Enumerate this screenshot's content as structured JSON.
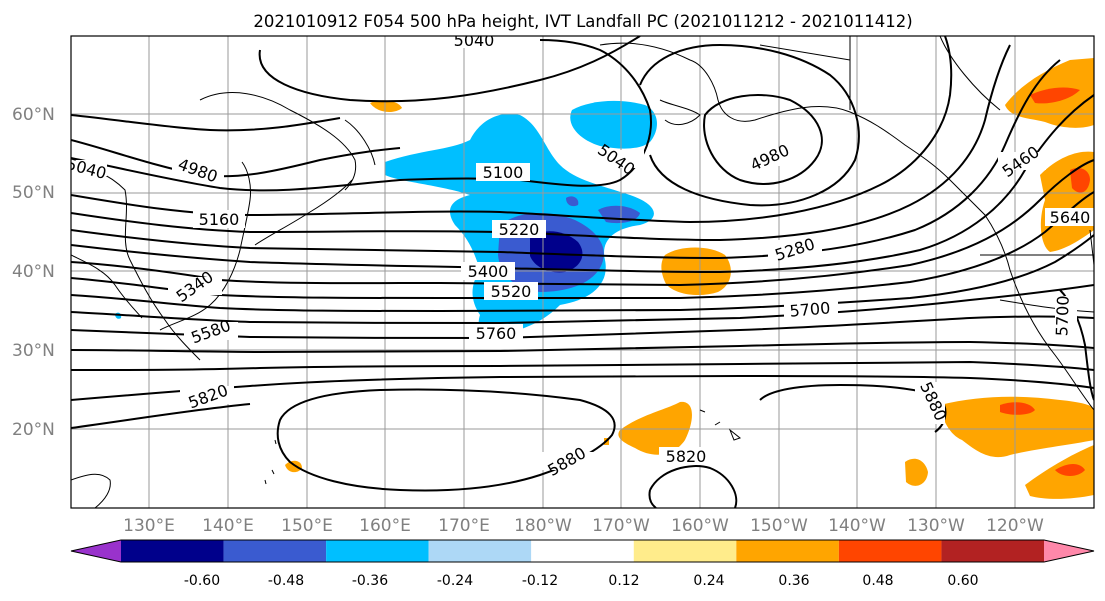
{
  "title": "2021010912 F054 500 hPa height, IVT Landfall PC (2021011212 - 2021011412)",
  "lat_labels": [
    "60°N",
    "50°N",
    "40°N",
    "30°N",
    "20°N"
  ],
  "lon_labels": [
    "130°E",
    "140°E",
    "150°E",
    "160°E",
    "170°E",
    "180°W",
    "170°W",
    "160°W",
    "150°W",
    "140°W",
    "130°W",
    "120°W"
  ],
  "colorbar": {
    "ticks": [
      "-0.60",
      "-0.48",
      "-0.36",
      "-0.24",
      "-0.12",
      "0.12",
      "0.24",
      "0.36",
      "0.48",
      "0.60"
    ],
    "colors": [
      "#9932cc",
      "#00008b",
      "#3a5bd0",
      "#00bfff",
      "#add8f6",
      "#ffffff",
      "#ffec8b",
      "#ffa500",
      "#ff4500",
      "#b22222",
      "#ff88aa"
    ]
  },
  "contour_labels": [
    {
      "id": "c5040-top",
      "text": "5040"
    },
    {
      "id": "c5040-left",
      "text": "5040"
    },
    {
      "id": "c4980-left",
      "text": "4980"
    },
    {
      "id": "c5100",
      "text": "5100"
    },
    {
      "id": "c5040-mid",
      "text": "5040"
    },
    {
      "id": "c4980-right",
      "text": "4980"
    },
    {
      "id": "c5160",
      "text": "5160"
    },
    {
      "id": "c5220",
      "text": "5220"
    },
    {
      "id": "c5280",
      "text": "5280"
    },
    {
      "id": "c5340",
      "text": "5340"
    },
    {
      "id": "c5400",
      "text": "5400"
    },
    {
      "id": "c5460",
      "text": "5460"
    },
    {
      "id": "c5520",
      "text": "5520"
    },
    {
      "id": "c5580",
      "text": "5580"
    },
    {
      "id": "c5640",
      "text": "5640"
    },
    {
      "id": "c5700",
      "text": "5700"
    },
    {
      "id": "c5700-right",
      "text": "5700"
    },
    {
      "id": "c5760",
      "text": "5760"
    },
    {
      "id": "c5820-left",
      "text": "5820"
    },
    {
      "id": "c5820-bottom",
      "text": "5820"
    },
    {
      "id": "c5880-center",
      "text": "5880"
    },
    {
      "id": "c5880-right",
      "text": "5880"
    }
  ]
}
